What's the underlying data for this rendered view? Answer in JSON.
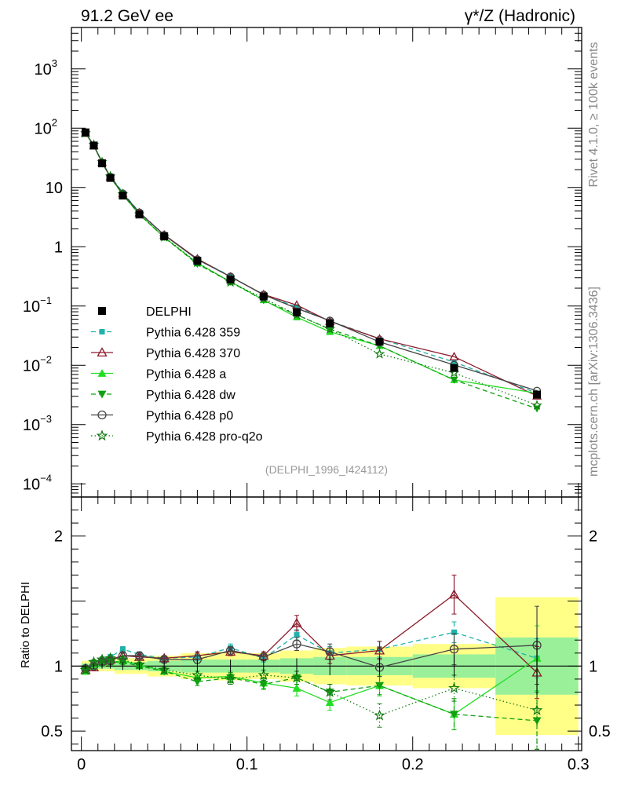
{
  "header": {
    "left": "91.2 GeV ee",
    "right": "γ*/Z (Hadronic)",
    "side_top": "Rivet 4.1.0, ≥ 100k events",
    "side_bottom": "mcplots.cern.ch [arXiv:1306.3436]",
    "watermark": "(DELPHI_1996_I424112)"
  },
  "chart_data": {
    "type": "line",
    "x": [
      0.0025,
      0.0075,
      0.0125,
      0.0175,
      0.025,
      0.035,
      0.05,
      0.07,
      0.09,
      0.11,
      0.13,
      0.15,
      0.18,
      0.225,
      0.275
    ],
    "x_edges": [
      0,
      0.005,
      0.01,
      0.015,
      0.02,
      0.03,
      0.04,
      0.06,
      0.08,
      0.1,
      0.12,
      0.14,
      0.16,
      0.2,
      0.25,
      0.3
    ],
    "main": {
      "yscale": "log",
      "ylim": [
        6e-05,
        5000
      ],
      "ytick_labels": [
        {
          "v": 1000,
          "base": "10",
          "exp": "3"
        },
        {
          "v": 100,
          "base": "10",
          "exp": "2"
        },
        {
          "v": 10,
          "base": "10",
          "exp": ""
        },
        {
          "v": 1,
          "base": "1",
          "exp": ""
        },
        {
          "v": 0.1,
          "base": "10",
          "exp": "−1"
        },
        {
          "v": 0.01,
          "base": "10",
          "exp": "−2"
        },
        {
          "v": 0.001,
          "base": "10",
          "exp": "−3"
        },
        {
          "v": 0.0001,
          "base": "10",
          "exp": "−4"
        }
      ]
    },
    "ratio": {
      "ylabel": "Ratio to DELPHI",
      "ylim": [
        0.35,
        2.3
      ],
      "ytick_labels": [
        {
          "v": 0.5,
          "label": "0.5"
        },
        {
          "v": 1,
          "label": "1"
        },
        {
          "v": 2,
          "label": "2"
        }
      ],
      "band_inner": [
        0.02,
        0.02,
        0.02,
        0.02,
        0.03,
        0.03,
        0.04,
        0.05,
        0.05,
        0.05,
        0.06,
        0.07,
        0.07,
        0.09,
        0.22
      ],
      "band_outer": [
        0.04,
        0.04,
        0.04,
        0.04,
        0.06,
        0.06,
        0.08,
        0.1,
        0.11,
        0.1,
        0.12,
        0.14,
        0.15,
        0.17,
        0.53
      ]
    },
    "xlim": [
      -0.006,
      0.302
    ],
    "xtick_labels": [
      {
        "v": 0,
        "label": "0"
      },
      {
        "v": 0.1,
        "label": "0.1"
      },
      {
        "v": 0.2,
        "label": "0.2"
      },
      {
        "v": 0.3,
        "label": "0.3"
      }
    ],
    "data": {
      "name": "DELPHI",
      "values": [
        85,
        51,
        25.5,
        14.5,
        7.3,
        3.5,
        1.5,
        0.58,
        0.28,
        0.145,
        0.078,
        0.051,
        0.025,
        0.009,
        0.0032
      ],
      "ratio_err": [
        0.02,
        0.02,
        0.02,
        0.02,
        0.03,
        0.03,
        0.04,
        0.05,
        0.05,
        0.05,
        0.06,
        0.07,
        0.07,
        0.09,
        0.22
      ]
    },
    "series": [
      {
        "name": "Pythia 6.428 359",
        "color": "#20b2aa",
        "dash": "6,4",
        "marker": "square",
        "ratio": [
          0.97,
          1.01,
          1.05,
          1.07,
          1.13,
          1.09,
          1.06,
          1.07,
          1.14,
          1.06,
          1.24,
          1.1,
          1.13,
          1.26,
          1.06
        ],
        "ratio_err": [
          0.01,
          0.02,
          0.02,
          0.02,
          0.02,
          0.02,
          0.02,
          0.03,
          0.03,
          0.03,
          0.04,
          0.05,
          0.06,
          0.08,
          0.15
        ]
      },
      {
        "name": "Pythia 6.428 370",
        "color": "#8b1a2a",
        "dash": "",
        "marker": "triangle-open",
        "ratio": [
          0.97,
          0.99,
          1.04,
          1.05,
          1.08,
          1.07,
          1.06,
          1.08,
          1.11,
          1.08,
          1.33,
          1.08,
          1.12,
          1.55,
          0.95
        ],
        "ratio_err": [
          0.01,
          0.02,
          0.02,
          0.02,
          0.02,
          0.02,
          0.02,
          0.03,
          0.03,
          0.03,
          0.06,
          0.06,
          0.07,
          0.15,
          0.2
        ]
      },
      {
        "name": "Pythia 6.428 a",
        "color": "#22dd22",
        "dash": "",
        "marker": "triangle",
        "ratio": [
          0.96,
          1.0,
          1.02,
          1.03,
          1.04,
          1.01,
          0.96,
          0.91,
          0.92,
          0.87,
          0.83,
          0.72,
          0.85,
          0.63,
          1.06
        ],
        "ratio_err": [
          0.01,
          0.02,
          0.02,
          0.02,
          0.02,
          0.02,
          0.02,
          0.03,
          0.04,
          0.04,
          0.06,
          0.06,
          0.08,
          0.12,
          0.25
        ]
      },
      {
        "name": "Pythia 6.428 dw",
        "color": "#11a011",
        "dash": "6,4",
        "marker": "triangle-down",
        "ratio": [
          0.97,
          1.02,
          1.03,
          1.03,
          1.03,
          1.0,
          0.96,
          0.88,
          0.91,
          0.86,
          0.91,
          0.8,
          0.85,
          0.63,
          0.58
        ],
        "ratio_err": [
          0.01,
          0.02,
          0.02,
          0.02,
          0.02,
          0.02,
          0.02,
          0.03,
          0.04,
          0.04,
          0.05,
          0.06,
          0.07,
          0.12,
          0.22
        ]
      },
      {
        "name": "Pythia 6.428 p0",
        "color": "#444444",
        "dash": "",
        "marker": "circle-open",
        "ratio": [
          0.98,
          1.0,
          1.03,
          1.04,
          1.08,
          1.08,
          1.05,
          1.05,
          1.12,
          1.07,
          1.17,
          1.11,
          0.99,
          1.13,
          1.16
        ],
        "ratio_err": [
          0.01,
          0.02,
          0.02,
          0.02,
          0.02,
          0.02,
          0.02,
          0.03,
          0.03,
          0.03,
          0.05,
          0.06,
          0.07,
          0.12,
          0.3
        ]
      },
      {
        "name": "Pythia 6.428 pro-q2o",
        "color": "#137a13",
        "dash": "1.5,3",
        "marker": "star-open",
        "ratio": [
          0.97,
          1.03,
          1.05,
          1.06,
          1.05,
          1.01,
          0.97,
          0.93,
          0.9,
          0.93,
          0.91,
          0.8,
          0.62,
          0.83,
          0.66
        ],
        "ratio_err": [
          0.01,
          0.02,
          0.02,
          0.02,
          0.02,
          0.02,
          0.02,
          0.03,
          0.04,
          0.04,
          0.05,
          0.06,
          0.09,
          0.1,
          0.3
        ]
      }
    ]
  }
}
